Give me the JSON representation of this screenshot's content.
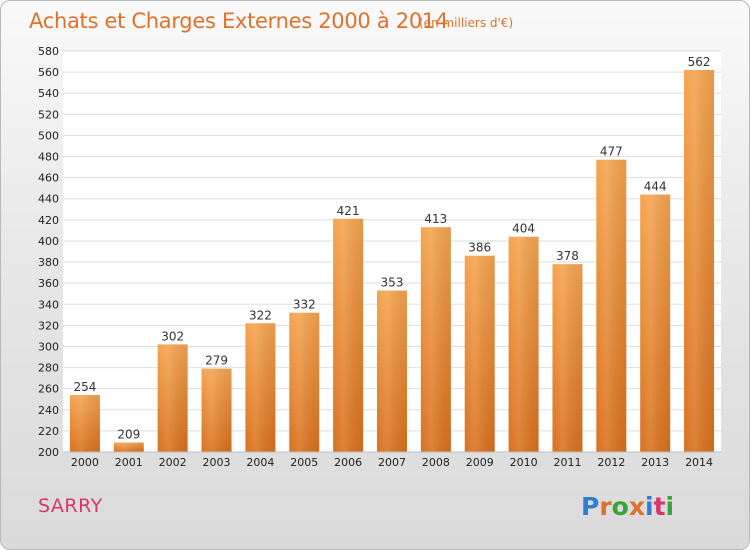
{
  "header": {
    "title": "Achats et Charges Externes 2000 à 2014",
    "subtitle": "(en milliers d'€)"
  },
  "footer": {
    "place": "SARRY",
    "logo": {
      "text": "Proxiti",
      "letter_colors": [
        "#2f7fd0",
        "#e0712b",
        "#3aa33a",
        "#e0712b",
        "#2f7fd0",
        "#d9366b",
        "#3aa33a"
      ]
    }
  },
  "chart_data": {
    "type": "bar",
    "categories": [
      "2000",
      "2001",
      "2002",
      "2003",
      "2004",
      "2005",
      "2006",
      "2007",
      "2008",
      "2009",
      "2010",
      "2011",
      "2012",
      "2013",
      "2014"
    ],
    "values": [
      254,
      209,
      302,
      279,
      322,
      332,
      421,
      353,
      413,
      386,
      404,
      378,
      477,
      444,
      562
    ],
    "ylim": [
      200,
      580
    ],
    "yticks": [
      200,
      220,
      240,
      260,
      280,
      300,
      320,
      340,
      360,
      380,
      400,
      420,
      440,
      460,
      480,
      500,
      520,
      540,
      560,
      580
    ],
    "grid": true,
    "bar_color_top": "#f5a44f",
    "bar_color_bottom": "#d9711d"
  }
}
